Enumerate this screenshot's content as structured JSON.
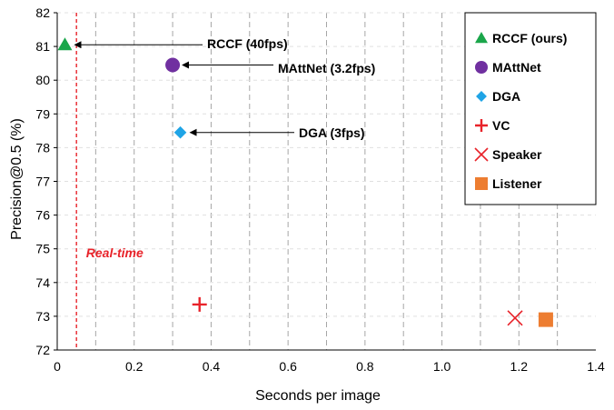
{
  "chart_data": {
    "type": "scatter",
    "xlabel": "Seconds  per  image",
    "ylabel": "Precision@0.5 (%)",
    "xlim": [
      0,
      1.4
    ],
    "ylim": [
      72,
      82
    ],
    "xticks": [
      "0",
      "0.2",
      "0.4",
      "0.6",
      "0.8",
      "1.0",
      "1.2",
      "1.4"
    ],
    "yticks": [
      "72",
      "73",
      "74",
      "75",
      "76",
      "77",
      "78",
      "79",
      "80",
      "81",
      "82"
    ],
    "grid": "vertical dashed",
    "legend_position": "top-right",
    "series": [
      {
        "name": "RCCF (ours)",
        "marker": "triangle",
        "color": "#1aa64a",
        "x": 0.02,
        "y": 81.05
      },
      {
        "name": "MAttNet",
        "marker": "circle",
        "color": "#7030a0",
        "x": 0.3,
        "y": 80.45
      },
      {
        "name": "DGA",
        "marker": "diamond",
        "color": "#1fa4e6",
        "x": 0.32,
        "y": 78.45
      },
      {
        "name": "VC",
        "marker": "plus",
        "color": "#e8232a",
        "x": 0.37,
        "y": 73.35
      },
      {
        "name": "Speaker",
        "marker": "x",
        "color": "#e8232a",
        "x": 1.19,
        "y": 72.95
      },
      {
        "name": "Listener",
        "marker": "square",
        "color": "#ed7d31",
        "x": 1.27,
        "y": 72.9
      }
    ],
    "annotations": [
      {
        "text": "RCCF (40fps)",
        "target": "RCCF (ours)"
      },
      {
        "text": "MAttNet (3.2fps)",
        "target": "MAttNet"
      },
      {
        "text": "DGA (3fps)",
        "target": "DGA"
      }
    ],
    "reference_line": {
      "x": 0.05,
      "label": "Real-time",
      "color": "#e8232a"
    }
  }
}
